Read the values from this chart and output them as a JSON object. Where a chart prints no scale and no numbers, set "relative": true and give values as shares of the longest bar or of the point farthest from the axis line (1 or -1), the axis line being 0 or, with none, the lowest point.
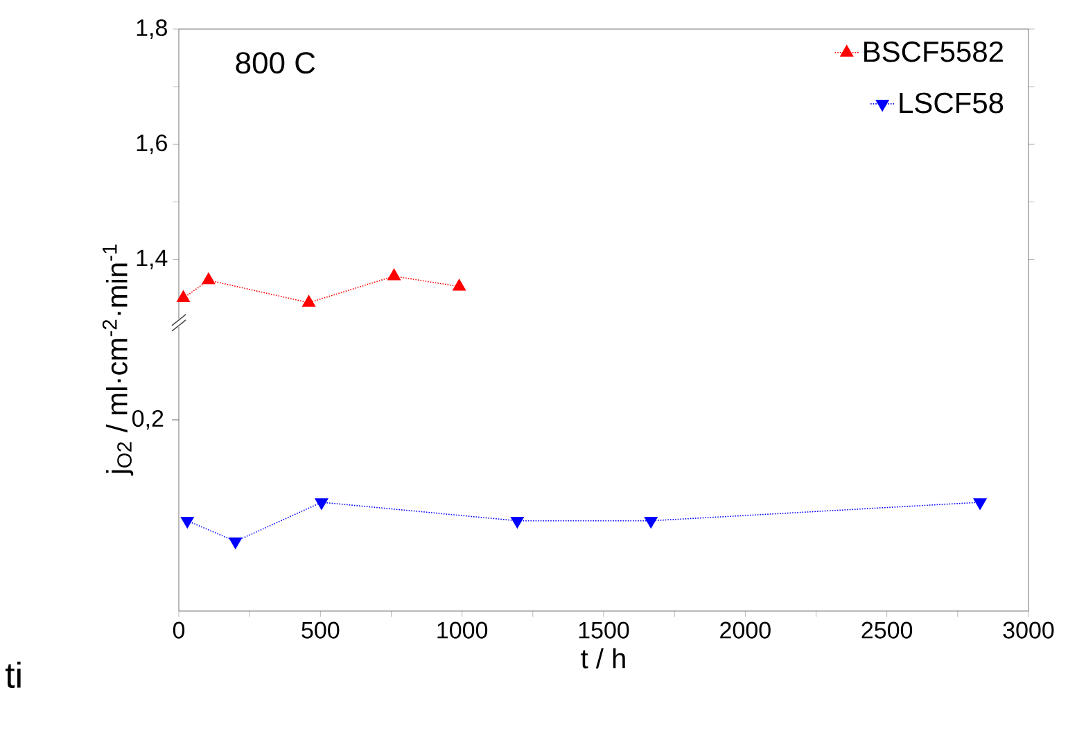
{
  "chart_data": [
    {
      "type": "line",
      "ylabel": "j$_{O2}$ / ml·cm$^{-2}$·min$^{-1}$",
      "annotations": [
        "800 C"
      ],
      "legend": "top right",
      "marker": "triangle",
      "line_style": "dotted",
      "tick_labels": "y",
      "xlim": [
        0,
        3000
      ],
      "ylim": [
        1.29,
        1.8
      ],
      "yticks": [
        {
          "value": 1.4,
          "label": "1,4"
        },
        {
          "value": 1.5,
          "label": null
        },
        {
          "value": 1.6,
          "label": "1,6"
        },
        {
          "value": 1.7,
          "label": null
        },
        {
          "value": 1.8,
          "label": "1,8"
        }
      ],
      "series": [
        {
          "name": "BSCF5582",
          "color": "#ff0000",
          "x": [
            16,
            105,
            459,
            760,
            990
          ],
          "values": [
            1.333,
            1.364,
            1.325,
            1.371,
            1.353
          ]
        }
      ]
    },
    {
      "type": "line",
      "relative": true,
      "xlabel": "t / h",
      "annotations": [
        "0,2",
        "ti"
      ],
      "legend": "top right",
      "marker": "triangle",
      "line_style": "dotted",
      "xlim": [
        0,
        3000
      ],
      "xticks": [
        0,
        {
          "value": 250,
          "label": null
        },
        500,
        {
          "value": 750,
          "label": null
        },
        1000,
        {
          "value": 1250,
          "label": null
        },
        1500,
        {
          "value": 1750,
          "label": null
        },
        2000,
        {
          "value": 2250,
          "label": null
        },
        2500,
        {
          "value": 2750,
          "label": null
        },
        3000
      ],
      "series": [
        {
          "name": "LSCF58",
          "color": "#0000ff",
          "x": [
            30,
            200,
            504,
            1195,
            1667,
            2829
          ],
          "values": [
            0.83,
            0.64,
            1,
            0.83,
            0.83,
            1
          ]
        }
      ]
    }
  ]
}
